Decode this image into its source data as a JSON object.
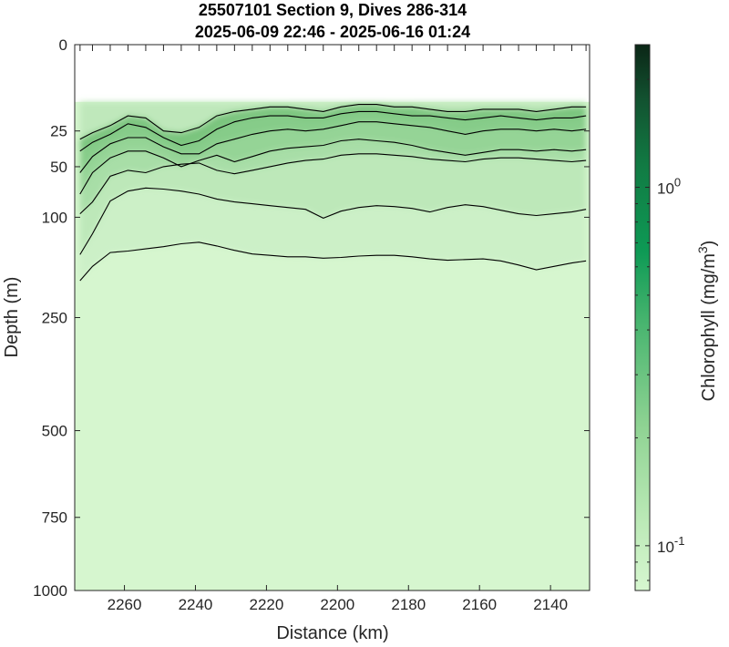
{
  "chart_data": {
    "type": "heatmap",
    "title_line1": "25507101 Section 9, Dives 286-314",
    "title_line2": "2025-06-09 22:46 - 2025-06-16 01:24",
    "xlabel": "Distance (km)",
    "ylabel": "Depth (m)",
    "colorbar_label_prefix": "Chlorophyll (mg/m",
    "colorbar_label_sup": "3",
    "colorbar_label_suffix": ")",
    "x_reversed": true,
    "xlim": [
      2274,
      2129
    ],
    "x_ticks": [
      2260,
      2240,
      2220,
      2200,
      2180,
      2160,
      2140
    ],
    "x_tick_labels": [
      "2260",
      "2240",
      "2220",
      "2200",
      "2180",
      "2160",
      "2140"
    ],
    "y_scale": "square-root",
    "ylim": [
      0,
      1000
    ],
    "y_ticks": [
      0,
      25,
      50,
      100,
      250,
      500,
      750,
      1000
    ],
    "y_tick_labels": [
      "0",
      "25",
      "50",
      "100",
      "250",
      "500",
      "750",
      "1000"
    ],
    "data_top_depth": 11,
    "colorbar_scale": "log",
    "colorbar_range": [
      0.075,
      2.5
    ],
    "colorbar_ticks": [
      0.1,
      1.0
    ],
    "colorbar_tick_base": "10",
    "colorbar_tick_exps": [
      "-1",
      "0"
    ],
    "colors": {
      "low": "#d6f6cf",
      "mid": "#85cc8a",
      "high": "#0a8f4f",
      "max": "#0c2817",
      "contour": "#000000",
      "background": "#ffffff"
    },
    "dive_x": [
      2272.5,
      2269,
      2264,
      2259,
      2254,
      2249,
      2244,
      2239,
      2234,
      2229,
      2224,
      2219,
      2214,
      2209,
      2204,
      2199,
      2194,
      2189,
      2184,
      2179,
      2174,
      2169,
      2164,
      2159,
      2154,
      2149,
      2144,
      2139,
      2134,
      2130
    ],
    "contour_levels": [
      {
        "level": 0.1,
        "depth": [
          187,
          165,
          145,
          143,
          140,
          137,
          133,
          131,
          136,
          142,
          147,
          149,
          151,
          151,
          153,
          152,
          150,
          149,
          149,
          151,
          154,
          156,
          155,
          154,
          157,
          163,
          170,
          165,
          160,
          157
        ]
      },
      {
        "level": 0.15,
        "depth": [
          148,
          120,
          82,
          72,
          69,
          70,
          72,
          75,
          80,
          83,
          85,
          87,
          89,
          91,
          101,
          93,
          89,
          87,
          88,
          90,
          94,
          89,
          86,
          88,
          92,
          96,
          98,
          96,
          94,
          91
        ]
      },
      {
        "level": 0.2,
        "depth": [
          96,
          83,
          58,
          53,
          55,
          50,
          48,
          47,
          53,
          56,
          53,
          50,
          47,
          45,
          44,
          41,
          40,
          40,
          41,
          42,
          44,
          45,
          46,
          44,
          43,
          43,
          44,
          45,
          46,
          45
        ]
      },
      {
        "level": 0.3,
        "depth": [
          75,
          55,
          43,
          38,
          38,
          43,
          50,
          45,
          41,
          46,
          42,
          38,
          36,
          35,
          34,
          31,
          30,
          31,
          32,
          34,
          37,
          39,
          41,
          39,
          37,
          37,
          38,
          37,
          38,
          37
        ]
      },
      {
        "level": 0.45,
        "depth": [
          55,
          42,
          33,
          29,
          29,
          35,
          40,
          40,
          33,
          30,
          27,
          25,
          24,
          25,
          24,
          22,
          20,
          20,
          21,
          22,
          23,
          25,
          27,
          25,
          24,
          24,
          25,
          24,
          25,
          24
        ]
      },
      {
        "level": 0.6,
        "depth": [
          38,
          32,
          27,
          21,
          23,
          29,
          34,
          31,
          24,
          20,
          18,
          17,
          17,
          18,
          18,
          16,
          15,
          15,
          16,
          17,
          17,
          18,
          19,
          18,
          17,
          18,
          19,
          18,
          18,
          17
        ]
      },
      {
        "level": 0.8,
        "depth": [
          30,
          26,
          22,
          17,
          18,
          25,
          26,
          23,
          17,
          15,
          14,
          13,
          13,
          14,
          15,
          13,
          12,
          12,
          13,
          13,
          14,
          15,
          15,
          14,
          14,
          14,
          15,
          14,
          13,
          13
        ]
      }
    ]
  }
}
